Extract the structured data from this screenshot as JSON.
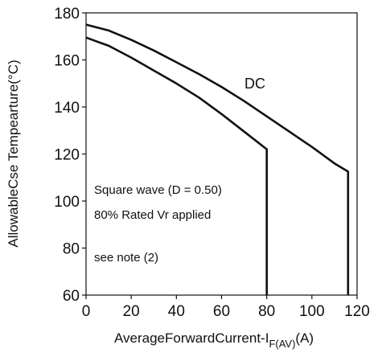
{
  "chart_data": {
    "type": "line",
    "xlabel": "AverageForwardCurrent-I",
    "xlabel_sub": "F(AV)",
    "xlabel_unit": "(A)",
    "ylabel": "AllowableCse Tempearture(°C)",
    "xlim": [
      0,
      120
    ],
    "ylim": [
      60,
      180
    ],
    "xticks": [
      0,
      20,
      40,
      60,
      80,
      100,
      120
    ],
    "yticks": [
      60,
      80,
      100,
      120,
      140,
      160,
      180
    ],
    "grid": false,
    "series": [
      {
        "name": "",
        "x": [
          0,
          10,
          20,
          30,
          40,
          50,
          60,
          70,
          80,
          80
        ],
        "y": [
          169.5,
          166,
          161,
          155.5,
          150,
          144,
          137,
          129.5,
          122,
          60
        ]
      },
      {
        "name": "DC",
        "x": [
          0,
          10,
          20,
          30,
          40,
          50,
          60,
          70,
          80,
          90,
          100,
          110,
          116,
          116
        ],
        "y": [
          175,
          172.5,
          168.5,
          164,
          159,
          154,
          148.5,
          142.5,
          136,
          129.5,
          123,
          116,
          112.5,
          60
        ]
      }
    ],
    "annotations": {
      "dc_label": "DC",
      "line1": "Square wave (D = 0.50)",
      "line2": "80% Rated Vr applied",
      "line3": "see note (2)"
    }
  }
}
